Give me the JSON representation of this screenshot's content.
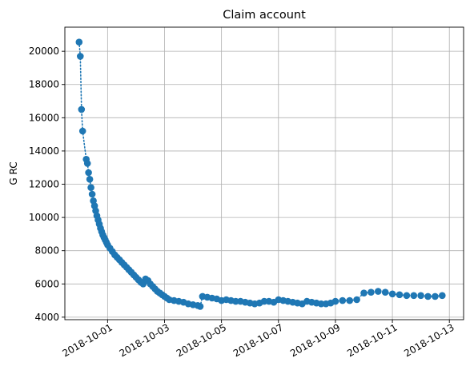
{
  "chart_data": {
    "type": "line",
    "title": "Claim account",
    "xlabel": "",
    "ylabel": "G RC",
    "x_axis_type": "date",
    "xlim": [
      "2018-09-29T12:00",
      "2018-10-13T12:00"
    ],
    "ylim": [
      3850,
      21450
    ],
    "grid": true,
    "line_style": "dotted",
    "marker": "circle",
    "x_ticks": [
      "2018-10-01",
      "2018-10-03",
      "2018-10-05",
      "2018-10-07",
      "2018-10-09",
      "2018-10-11",
      "2018-10-13"
    ],
    "y_ticks": [
      4000,
      6000,
      8000,
      10000,
      12000,
      14000,
      16000,
      18000,
      20000
    ],
    "series": [
      {
        "color": "#1f77b4",
        "points": [
          [
            "2018-09-30T00:00",
            20550
          ],
          [
            "2018-09-30T01:00",
            19700
          ],
          [
            "2018-09-30T02:00",
            16500
          ],
          [
            "2018-09-30T03:00",
            15200
          ],
          [
            "2018-09-30T06:00",
            13500
          ],
          [
            "2018-09-30T07:00",
            13250
          ],
          [
            "2018-09-30T08:00",
            12700
          ],
          [
            "2018-09-30T09:00",
            12300
          ],
          [
            "2018-09-30T10:00",
            11800
          ],
          [
            "2018-09-30T11:00",
            11400
          ],
          [
            "2018-09-30T12:00",
            11000
          ],
          [
            "2018-09-30T13:00",
            10700
          ],
          [
            "2018-09-30T14:00",
            10400
          ],
          [
            "2018-09-30T15:00",
            10100
          ],
          [
            "2018-09-30T16:00",
            9850
          ],
          [
            "2018-09-30T17:00",
            9600
          ],
          [
            "2018-09-30T18:00",
            9350
          ],
          [
            "2018-09-30T19:00",
            9150
          ],
          [
            "2018-09-30T20:00",
            8950
          ],
          [
            "2018-09-30T21:00",
            8800
          ],
          [
            "2018-09-30T22:00",
            8650
          ],
          [
            "2018-09-30T23:00",
            8500
          ],
          [
            "2018-10-01T00:00",
            8350
          ],
          [
            "2018-10-01T02:00",
            8150
          ],
          [
            "2018-10-01T04:00",
            7950
          ],
          [
            "2018-10-01T06:00",
            7750
          ],
          [
            "2018-10-01T08:00",
            7600
          ],
          [
            "2018-10-01T10:00",
            7450
          ],
          [
            "2018-10-01T12:00",
            7300
          ],
          [
            "2018-10-01T14:00",
            7150
          ],
          [
            "2018-10-01T16:00",
            7000
          ],
          [
            "2018-10-01T18:00",
            6850
          ],
          [
            "2018-10-01T20:00",
            6700
          ],
          [
            "2018-10-01T22:00",
            6550
          ],
          [
            "2018-10-02T00:00",
            6400
          ],
          [
            "2018-10-02T02:00",
            6250
          ],
          [
            "2018-10-02T04:00",
            6100
          ],
          [
            "2018-10-02T06:00",
            6000
          ],
          [
            "2018-10-02T08:00",
            6300
          ],
          [
            "2018-10-02T10:00",
            6200
          ],
          [
            "2018-10-02T12:00",
            6000
          ],
          [
            "2018-10-02T14:00",
            5850
          ],
          [
            "2018-10-02T16:00",
            5700
          ],
          [
            "2018-10-02T18:00",
            5550
          ],
          [
            "2018-10-02T20:00",
            5450
          ],
          [
            "2018-10-02T22:00",
            5350
          ],
          [
            "2018-10-03T00:00",
            5250
          ],
          [
            "2018-10-03T02:00",
            5150
          ],
          [
            "2018-10-03T04:00",
            5050
          ],
          [
            "2018-10-03T08:00",
            5000
          ],
          [
            "2018-10-03T12:00",
            4950
          ],
          [
            "2018-10-03T16:00",
            4900
          ],
          [
            "2018-10-03T20:00",
            4800
          ],
          [
            "2018-10-04T00:00",
            4750
          ],
          [
            "2018-10-04T04:00",
            4700
          ],
          [
            "2018-10-04T06:00",
            4650
          ],
          [
            "2018-10-04T08:00",
            5250
          ],
          [
            "2018-10-04T12:00",
            5200
          ],
          [
            "2018-10-04T16:00",
            5150
          ],
          [
            "2018-10-04T20:00",
            5100
          ],
          [
            "2018-10-05T00:00",
            5000
          ],
          [
            "2018-10-05T04:00",
            5050
          ],
          [
            "2018-10-05T08:00",
            5000
          ],
          [
            "2018-10-05T12:00",
            4950
          ],
          [
            "2018-10-05T16:00",
            4950
          ],
          [
            "2018-10-05T20:00",
            4900
          ],
          [
            "2018-10-06T00:00",
            4850
          ],
          [
            "2018-10-06T04:00",
            4800
          ],
          [
            "2018-10-06T08:00",
            4850
          ],
          [
            "2018-10-06T12:00",
            4950
          ],
          [
            "2018-10-06T16:00",
            4950
          ],
          [
            "2018-10-06T20:00",
            4900
          ],
          [
            "2018-10-07T00:00",
            5050
          ],
          [
            "2018-10-07T04:00",
            5000
          ],
          [
            "2018-10-07T08:00",
            4950
          ],
          [
            "2018-10-07T12:00",
            4900
          ],
          [
            "2018-10-07T16:00",
            4850
          ],
          [
            "2018-10-07T20:00",
            4800
          ],
          [
            "2018-10-08T00:00",
            4950
          ],
          [
            "2018-10-08T04:00",
            4900
          ],
          [
            "2018-10-08T08:00",
            4850
          ],
          [
            "2018-10-08T12:00",
            4800
          ],
          [
            "2018-10-08T16:00",
            4800
          ],
          [
            "2018-10-08T20:00",
            4850
          ],
          [
            "2018-10-09T00:00",
            4950
          ],
          [
            "2018-10-09T06:00",
            5000
          ],
          [
            "2018-10-09T12:00",
            5000
          ],
          [
            "2018-10-09T18:00",
            5050
          ],
          [
            "2018-10-10T00:00",
            5450
          ],
          [
            "2018-10-10T06:00",
            5500
          ],
          [
            "2018-10-10T12:00",
            5550
          ],
          [
            "2018-10-10T18:00",
            5500
          ],
          [
            "2018-10-11T00:00",
            5400
          ],
          [
            "2018-10-11T06:00",
            5350
          ],
          [
            "2018-10-11T12:00",
            5300
          ],
          [
            "2018-10-11T18:00",
            5300
          ],
          [
            "2018-10-12T00:00",
            5300
          ],
          [
            "2018-10-12T06:00",
            5250
          ],
          [
            "2018-10-12T12:00",
            5250
          ],
          [
            "2018-10-12T18:00",
            5300
          ]
        ]
      }
    ]
  }
}
